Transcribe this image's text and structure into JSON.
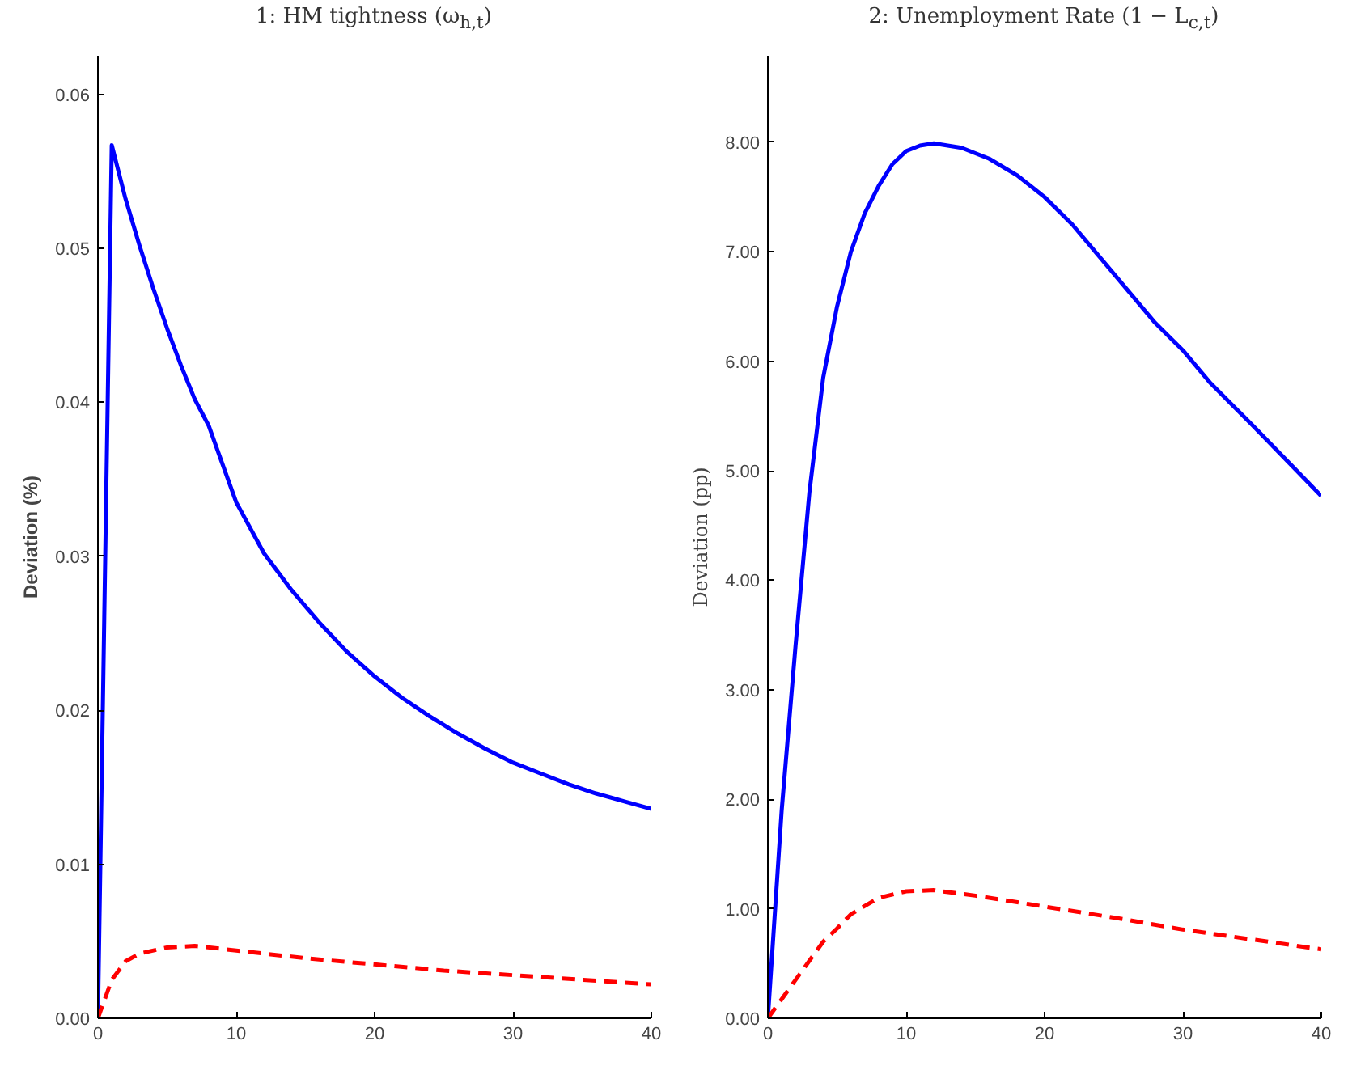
{
  "chart_data": [
    {
      "type": "line",
      "title": "1: HM tightness (ω$_{h,t}$)",
      "ylabel": "Deviation (%)",
      "xlim": [
        0,
        40
      ],
      "ylim": [
        0,
        0.0625
      ],
      "xticks": [
        0,
        10,
        20,
        30,
        40
      ],
      "yticks": [
        {
          "value": 0,
          "label": "0.00"
        },
        {
          "value": 0.01,
          "label": "0.01"
        },
        {
          "value": 0.02,
          "label": "0.02"
        },
        {
          "value": 0.03,
          "label": "0.03"
        },
        {
          "value": 0.04,
          "label": "0.04"
        },
        {
          "value": 0.05,
          "label": "0.05"
        },
        {
          "value": 0.06,
          "label": "0.06"
        }
      ],
      "grid": false,
      "series": [
        {
          "color": "#0000ff",
          "line_style": "solid",
          "x": [
            0,
            1,
            2,
            3,
            4,
            5,
            6,
            7,
            8,
            9,
            10,
            12,
            14,
            16,
            18,
            20,
            22,
            24,
            26,
            28,
            30,
            32,
            34,
            36,
            38,
            40
          ],
          "values": [
            0,
            0.0567,
            0.0532,
            0.0502,
            0.0474,
            0.0448,
            0.0424,
            0.0402,
            0.0385,
            0.036,
            0.0335,
            0.0302,
            0.0278,
            0.0257,
            0.0238,
            0.0222,
            0.0208,
            0.0196,
            0.0185,
            0.0175,
            0.0166,
            0.0159,
            0.0152,
            0.0146,
            0.0141,
            0.0136
          ]
        },
        {
          "color": "#ff0000",
          "line_style": "dashed",
          "x": [
            0,
            1,
            2,
            3,
            5,
            7,
            10,
            15,
            20,
            25,
            30,
            35,
            40
          ],
          "values": [
            0,
            0.0025,
            0.0037,
            0.0042,
            0.0046,
            0.0047,
            0.0044,
            0.0039,
            0.0035,
            0.0031,
            0.0028,
            0.0025,
            0.0022
          ]
        }
      ],
      "ref_lines": [
        {
          "axis": "y",
          "value": 0,
          "color": "#000000",
          "line_style": "dashed"
        }
      ]
    },
    {
      "type": "line",
      "title": "2: Unemployment Rate (1 − L$_{c,t}$)",
      "ylabel": "Deviation (pp)",
      "xlim": [
        0,
        40
      ],
      "ylim": [
        0,
        8.79
      ],
      "xticks": [
        0,
        10,
        20,
        30,
        40
      ],
      "yticks": [
        {
          "value": 0,
          "label": "0.00"
        },
        {
          "value": 1,
          "label": "1.00"
        },
        {
          "value": 2,
          "label": "2.00"
        },
        {
          "value": 3,
          "label": "3.00"
        },
        {
          "value": 4,
          "label": "4.00"
        },
        {
          "value": 5,
          "label": "5.00"
        },
        {
          "value": 6,
          "label": "6.00"
        },
        {
          "value": 7,
          "label": "7.00"
        },
        {
          "value": 8,
          "label": "8.00"
        }
      ],
      "grid": false,
      "series": [
        {
          "color": "#0000ff",
          "line_style": "solid",
          "x": [
            0,
            1,
            2,
            3,
            4,
            5,
            6,
            7,
            8,
            9,
            10,
            11,
            12,
            14,
            16,
            18,
            20,
            22,
            25,
            28,
            30,
            32,
            35,
            38,
            40
          ],
          "values": [
            0,
            1.9,
            3.4,
            4.8,
            5.85,
            6.5,
            7.0,
            7.35,
            7.6,
            7.8,
            7.92,
            7.97,
            7.99,
            7.95,
            7.85,
            7.7,
            7.5,
            7.25,
            6.8,
            6.35,
            6.1,
            5.8,
            5.42,
            5.03,
            4.77
          ]
        },
        {
          "color": "#ff0000",
          "line_style": "dashed",
          "x": [
            0,
            2,
            4,
            5,
            6,
            8,
            10,
            12,
            15,
            20,
            25,
            30,
            35,
            40
          ],
          "values": [
            0,
            0.35,
            0.7,
            0.82,
            0.95,
            1.1,
            1.16,
            1.17,
            1.12,
            1.02,
            0.92,
            0.81,
            0.72,
            0.63
          ]
        }
      ],
      "ref_lines": [
        {
          "axis": "y",
          "value": 0,
          "color": "#000000",
          "line_style": "dashed"
        }
      ]
    }
  ]
}
